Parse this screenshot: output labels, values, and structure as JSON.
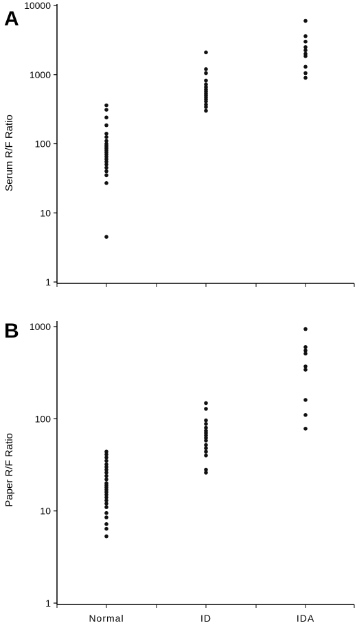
{
  "chart_data": [
    {
      "type": "scatter",
      "panel": "A",
      "ylabel": "Serum R/F Ratio",
      "yscale": "log",
      "ylim": [
        1,
        10000
      ],
      "yticks": [
        1,
        10,
        100,
        1000,
        10000
      ],
      "ytick_labels": [
        "1",
        "10",
        "100",
        "1000",
        "10000"
      ],
      "categories": [
        "Normal",
        "ID",
        "IDA"
      ],
      "series": [
        {
          "category": "Normal",
          "values": [
            360,
            310,
            240,
            185,
            140,
            125,
            110,
            100,
            95,
            90,
            85,
            80,
            75,
            70,
            65,
            60,
            55,
            50,
            45,
            40,
            35,
            27,
            4.5
          ]
        },
        {
          "category": "ID",
          "values": [
            2100,
            1200,
            1050,
            820,
            720,
            660,
            610,
            570,
            530,
            500,
            470,
            440,
            410,
            370,
            340,
            300
          ]
        },
        {
          "category": "IDA",
          "values": [
            6000,
            3600,
            3000,
            2500,
            2250,
            2000,
            1850,
            1300,
            1050,
            900
          ]
        }
      ],
      "color": "#111111"
    },
    {
      "type": "scatter",
      "panel": "B",
      "ylabel": "Paper R/F Ratio",
      "yscale": "log",
      "ylim": [
        1,
        1000
      ],
      "yticks": [
        1,
        10,
        100,
        1000
      ],
      "ytick_labels": [
        "1",
        "10",
        "100",
        "1000"
      ],
      "categories": [
        "Normal",
        "ID",
        "IDA"
      ],
      "series": [
        {
          "category": "Normal",
          "values": [
            44,
            41,
            38,
            35,
            32,
            30,
            28,
            26,
            24,
            22,
            20,
            19,
            18,
            17,
            16,
            15,
            14,
            13,
            12,
            11,
            9.5,
            8.5,
            7.2,
            6.4,
            5.3
          ]
        },
        {
          "category": "ID",
          "values": [
            148,
            128,
            96,
            88,
            80,
            74,
            70,
            66,
            62,
            58,
            52,
            48,
            44,
            40,
            28,
            26
          ]
        },
        {
          "category": "IDA",
          "values": [
            940,
            600,
            550,
            510,
            370,
            340,
            160,
            110,
            78
          ]
        }
      ],
      "color": "#111111"
    }
  ]
}
